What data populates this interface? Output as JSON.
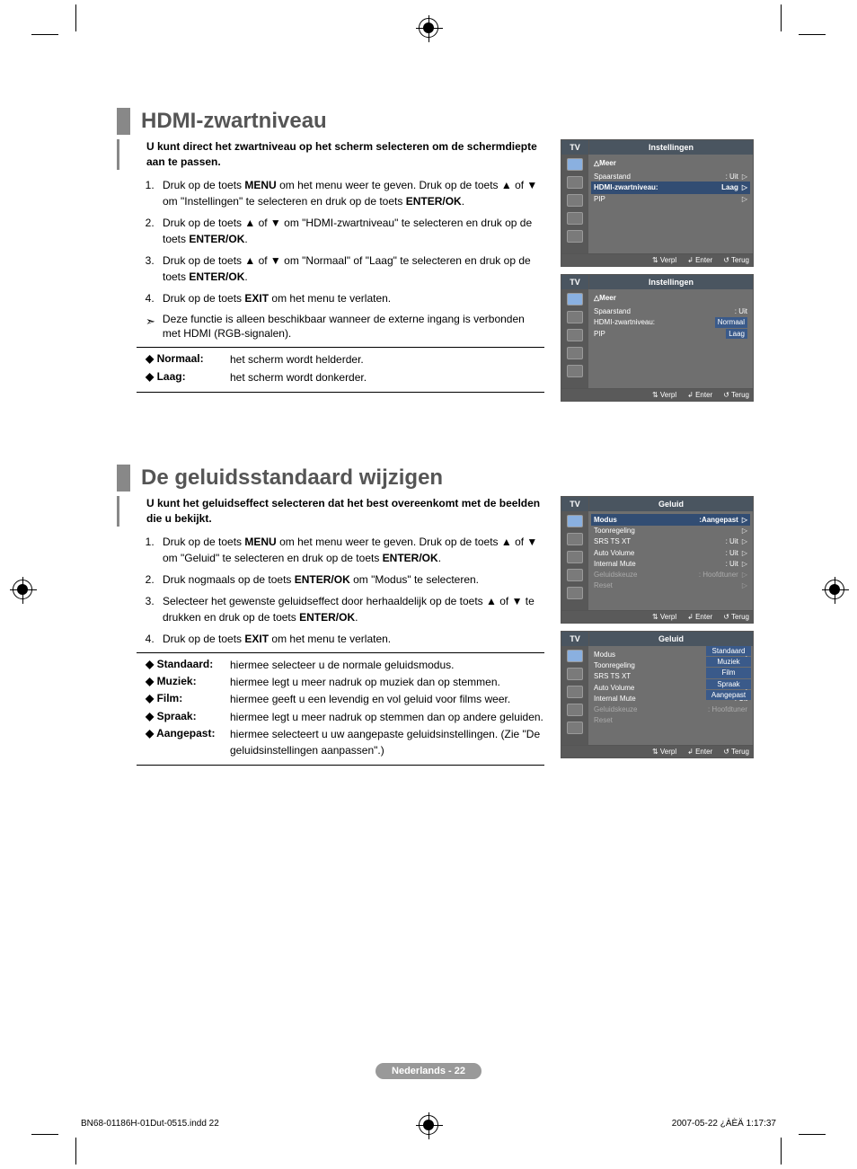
{
  "section1": {
    "title": "HDMI-zwartniveau",
    "intro": "U kunt direct het zwartniveau op het scherm selecteren om de schermdiepte aan te passen.",
    "steps": [
      "Druk op de toets <b>MENU</b> om het menu weer te geven. Druk op de toets ▲ of ▼ om \"Instellingen\" te selecteren en druk op de toets <b>ENTER/OK</b>.",
      "Druk op de toets ▲ of ▼ om \"HDMI-zwartniveau\" te selecteren en druk op de toets <b>ENTER/OK</b>.",
      "Druk op de toets ▲ of ▼ om \"Normaal\" of \"Laag\" te selecteren en druk op de toets <b>ENTER/OK</b>.",
      "Druk op de toets <b>EXIT</b> om het menu te verlaten."
    ],
    "note": "Deze functie is alleen beschikbaar wanneer de externe ingang is verbonden met HDMI (RGB-signalen).",
    "defs": [
      {
        "label": "Normaal:",
        "val": "het scherm wordt helderder."
      },
      {
        "label": "Laag:",
        "val": "het scherm wordt donkerder."
      }
    ],
    "osd1": {
      "title": "Instellingen",
      "tv": "TV",
      "more": "△Meer",
      "rows": [
        {
          "k": "Spaarstand",
          "v": ": Uit",
          "hl": false
        },
        {
          "k": "HDMI-zwartniveau:",
          "v": "Laag",
          "hl": true
        },
        {
          "k": "PIP",
          "v": "",
          "hl": false
        }
      ],
      "foot": {
        "a": "⇅ Verpl",
        "b": "↲ Enter",
        "c": "↺ Terug"
      }
    },
    "osd2": {
      "title": "Instellingen",
      "tv": "TV",
      "more": "△Meer",
      "rows": [
        {
          "k": "Spaarstand",
          "v": ": Uit"
        },
        {
          "k": "HDMI-zwartniveau:",
          "v": ""
        },
        {
          "k": "PIP",
          "v": ""
        }
      ],
      "options": [
        "Normaal",
        "Laag"
      ],
      "foot": {
        "a": "⇅ Verpl",
        "b": "↲ Enter",
        "c": "↺ Terug"
      }
    }
  },
  "section2": {
    "title": "De geluidsstandaard wijzigen",
    "intro": "U kunt het geluidseffect selecteren dat het best overeenkomt met de beelden die u bekijkt.",
    "steps": [
      "Druk op de toets <b>MENU</b> om het menu weer te geven. Druk op de toets ▲ of ▼ om \"Geluid\" te selecteren en druk op de toets <b>ENTER/OK</b>.",
      "Druk nogmaals op de toets <b>ENTER/OK</b> om \"Modus\" te selecteren.",
      "Selecteer het gewenste geluidseffect door herhaaldelijk op de toets ▲ of ▼ te drukken en druk op de toets <b>ENTER/OK</b>.",
      "Druk op de toets <b>EXIT</b> om het menu te verlaten."
    ],
    "defs": [
      {
        "label": "Standaard:",
        "val": "hiermee selecteer u de normale geluidsmodus."
      },
      {
        "label": "Muziek:",
        "val": "hiermee legt u meer nadruk op muziek dan op stemmen."
      },
      {
        "label": "Film:",
        "val": "hiermee geeft u een levendig en vol geluid voor films weer."
      },
      {
        "label": "Spraak:",
        "val": "hiermee legt u meer nadruk op stemmen dan op andere geluiden."
      },
      {
        "label": "Aangepast:",
        "val": "hiermee selecteert u uw aangepaste geluidsinstellingen. (Zie \"De geluidsinstellingen aanpassen\".)"
      }
    ],
    "osd1": {
      "title": "Geluid",
      "tv": "TV",
      "rows": [
        {
          "k": "Modus",
          "v": ":Aangepast",
          "hl": true
        },
        {
          "k": "Toonregeling",
          "v": ""
        },
        {
          "k": "SRS TS XT",
          "v": ": Uit"
        },
        {
          "k": "Auto Volume",
          "v": ": Uit"
        },
        {
          "k": "Internal Mute",
          "v": ": Uit"
        },
        {
          "k": "Geluidskeuze",
          "v": ": Hoofdtuner",
          "dim": true
        },
        {
          "k": "Reset",
          "v": "",
          "dim": true
        }
      ],
      "foot": {
        "a": "⇅ Verpl",
        "b": "↲ Enter",
        "c": "↺ Terug"
      }
    },
    "osd2": {
      "title": "Geluid",
      "tv": "TV",
      "rows": [
        {
          "k": "Modus",
          "v": ":"
        },
        {
          "k": "Toonregeling",
          "v": ""
        },
        {
          "k": "SRS TS XT",
          "v": ":"
        },
        {
          "k": "Auto Volume",
          "v": ":"
        },
        {
          "k": "Internal Mute",
          "v": ": Uit"
        },
        {
          "k": "Geluidskeuze",
          "v": ": Hoofdtuner",
          "dim": true
        },
        {
          "k": "Reset",
          "v": "",
          "dim": true
        }
      ],
      "options": [
        "Standaard",
        "Muziek",
        "Film",
        "Spraak",
        "Aangepast"
      ],
      "foot": {
        "a": "⇅ Verpl",
        "b": "↲ Enter",
        "c": "↺ Terug"
      }
    }
  },
  "footer": {
    "page": "Nederlands - 22",
    "indd": "BN68-01186H-01Dut-0515.indd   22",
    "date": "2007-05-22   ¿ÀÈÄ 1:17:37"
  }
}
